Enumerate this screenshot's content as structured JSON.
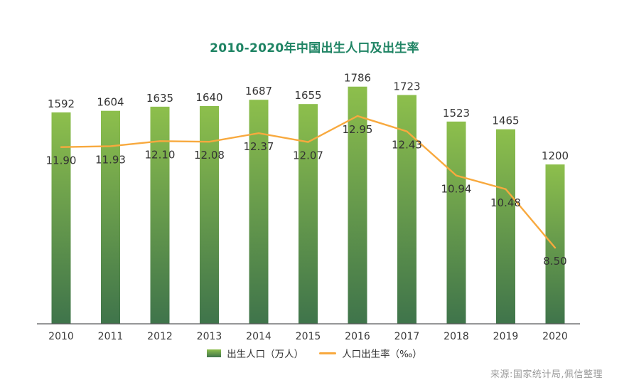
{
  "title": "2010-2020年中国出生人口及出生率",
  "source": "来源:国家统计局,佩信整理",
  "legend": {
    "bar_label": "出生人口（万人）",
    "line_label": "人口出生率（‰）"
  },
  "colors": {
    "title": "#1f8464",
    "bar_top": "#8dbf4c",
    "bar_bottom": "#3f744b",
    "line": "#f8a93e",
    "value_label": "#333333",
    "axis": "#58595b",
    "source": "#9b9b9b"
  },
  "chart_data": {
    "type": "bar",
    "title": "2010-2020年中国出生人口及出生率",
    "categories": [
      "2010",
      "2011",
      "2012",
      "2013",
      "2014",
      "2015",
      "2016",
      "2017",
      "2018",
      "2019",
      "2020"
    ],
    "series": [
      {
        "name": "出生人口（万人）",
        "type": "bar",
        "values": [
          1592,
          1604,
          1635,
          1640,
          1687,
          1655,
          1786,
          1723,
          1523,
          1465,
          1200
        ]
      },
      {
        "name": "人口出生率（‰）",
        "type": "line",
        "values": [
          11.9,
          11.93,
          12.1,
          12.08,
          12.37,
          12.07,
          12.95,
          12.43,
          10.94,
          10.48,
          8.5
        ]
      }
    ],
    "xlabel": "",
    "ylabel": "",
    "bar_axis_range": [
      0,
      1786
    ],
    "line_axis_range": [
      8.5,
      12.95
    ],
    "grid": false,
    "legend_position": "bottom",
    "data_labels": true
  }
}
